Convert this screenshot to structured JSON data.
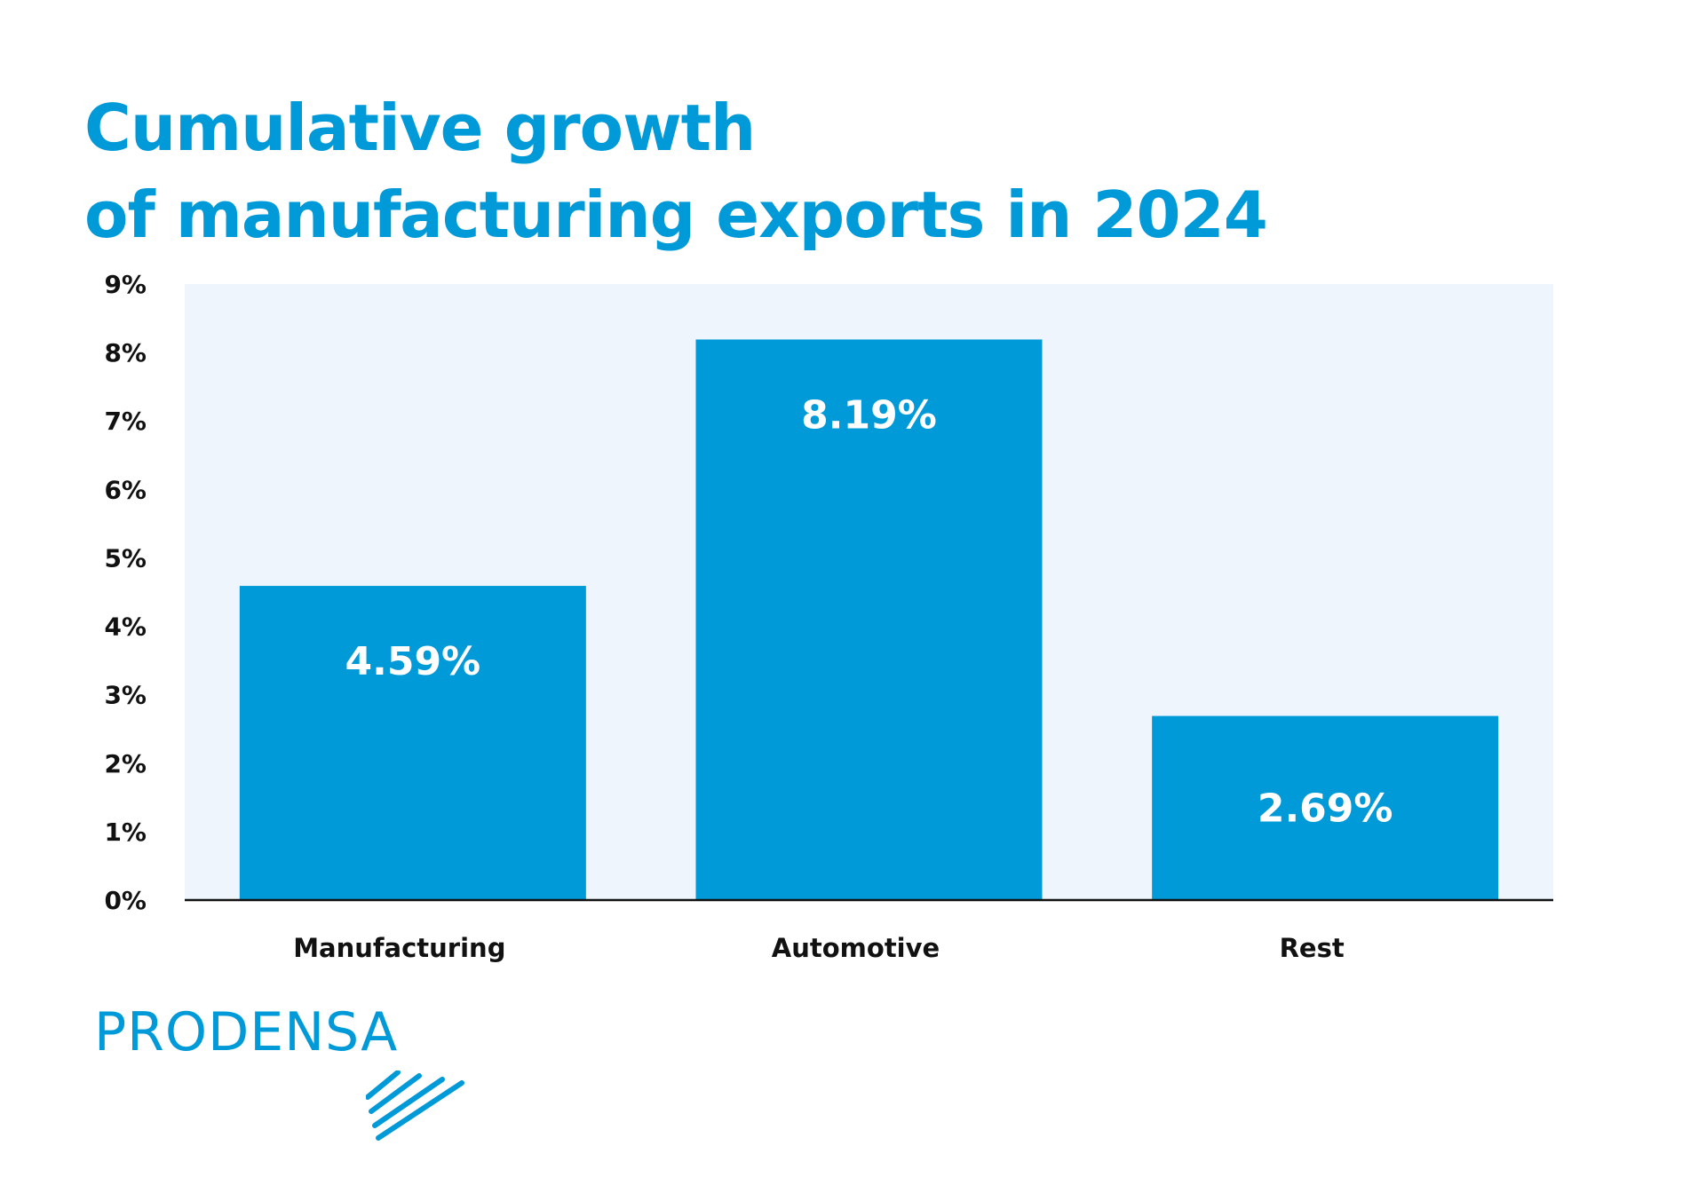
{
  "title": {
    "line1": "Cumulative growth",
    "line2": "of manufacturing exports in 2024"
  },
  "chart_data": {
    "type": "bar",
    "title": "Cumulative growth of manufacturing exports in 2024",
    "categories": [
      "Manufacturing",
      "Automotive",
      "Rest"
    ],
    "values": [
      4.59,
      8.19,
      2.69
    ],
    "data_labels": [
      "4.59%",
      "8.19%",
      "2.69%"
    ],
    "ylim": [
      0,
      9
    ],
    "yticks": [
      "0%",
      "1%",
      "2%",
      "3%",
      "4%",
      "5%",
      "6%",
      "7%",
      "8%",
      "9%"
    ],
    "xlabel": "",
    "ylabel": "",
    "grid": false,
    "legend": "none",
    "colors": {
      "bar": "#009ad9",
      "plot_background": "#eef5fc",
      "bar_label": "#ffffff",
      "axis_text": "#111111"
    }
  },
  "brand": {
    "name": "PRODENSA",
    "color": "#009ad9",
    "mark_icon": "diagonal-lines-icon"
  }
}
